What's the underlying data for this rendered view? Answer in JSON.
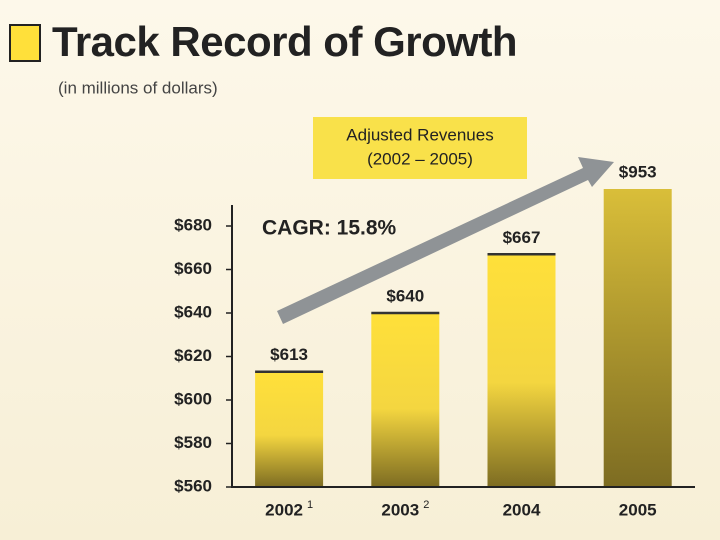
{
  "chart_data": {
    "type": "bar",
    "title": "Track Record of Growth",
    "subtitle": "(in millions of dollars)",
    "annotation_box": [
      "Adjusted Revenues",
      "(2002 – 2005)"
    ],
    "annotation": "CAGR: 15.8%",
    "categories": [
      "2002",
      "2003",
      "2004",
      "2005"
    ],
    "category_notes": [
      "1",
      "2",
      null,
      null
    ],
    "values": [
      613,
      640,
      667,
      953
    ],
    "value_labels": [
      "$613",
      "$640",
      "$667",
      "$953"
    ],
    "color": "#ffe03a",
    "ylim": [
      560,
      680
    ],
    "yticks": [
      {
        "value": 560,
        "label": "$560"
      },
      {
        "value": 580,
        "label": "$580"
      },
      {
        "value": 600,
        "label": "$600"
      },
      {
        "value": 620,
        "label": "$620"
      },
      {
        "value": 640,
        "label": "$640"
      },
      {
        "value": 660,
        "label": "$660"
      },
      {
        "value": 680,
        "label": "$680"
      }
    ],
    "grid": false
  }
}
